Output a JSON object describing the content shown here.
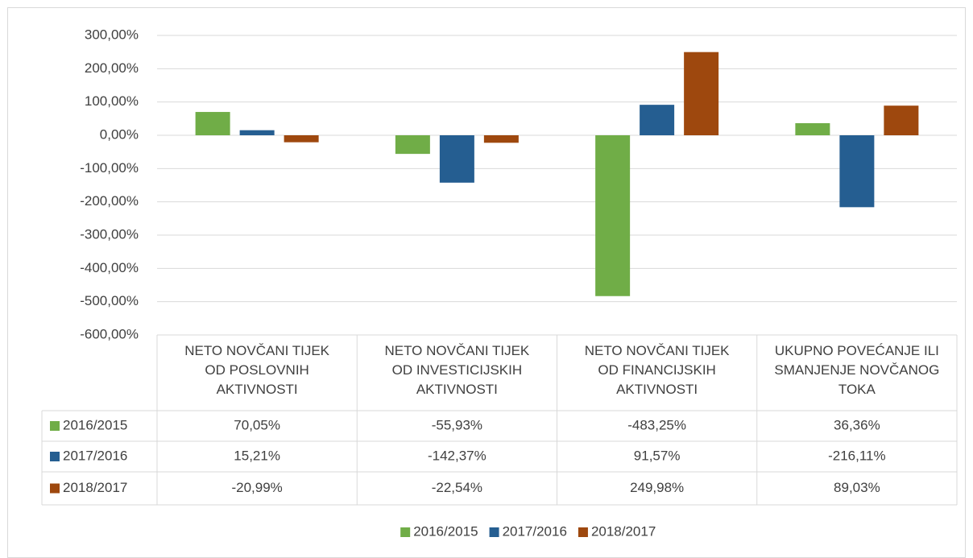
{
  "chart_data": {
    "type": "bar",
    "categories": [
      "NETO NOVČANI TIJEK OD POSLOVNIH AKTIVNOSTI",
      "NETO NOVČANI TIJEK OD INVESTICIJSKIH AKTIVNOSTI",
      "NETO NOVČANI TIJEK OD FINANCIJSKIH AKTIVNOSTI",
      "UKUPNO POVEĆANJE ILI SMANJENJE NOVČANOG TOKA"
    ],
    "series": [
      {
        "name": "2016/2015",
        "color": "#70ad47",
        "values": [
          70.05,
          -55.93,
          -483.25,
          36.36
        ],
        "value_labels": [
          "70,05%",
          "-55,93%",
          "-483,25%",
          "36,36%"
        ]
      },
      {
        "name": "2017/2016",
        "color": "#255e91",
        "values": [
          15.21,
          -142.37,
          91.57,
          -216.11
        ],
        "value_labels": [
          "15,21%",
          "-142,37%",
          "91,57%",
          "-216,11%"
        ]
      },
      {
        "name": "2018/2017",
        "color": "#9e480e",
        "values": [
          -20.99,
          -22.54,
          249.98,
          89.03
        ],
        "value_labels": [
          "-20,99%",
          "-22,54%",
          "249,98%",
          "89,03%"
        ]
      }
    ],
    "ylim": [
      -600,
      300
    ],
    "yticks": [
      {
        "value": 300,
        "label": "300,00%"
      },
      {
        "value": 200,
        "label": "200,00%"
      },
      {
        "value": 100,
        "label": "100,00%"
      },
      {
        "value": 0,
        "label": "0,00%"
      },
      {
        "value": -100,
        "label": "-100,00%"
      },
      {
        "value": -200,
        "label": "-200,00%"
      },
      {
        "value": -300,
        "label": "-300,00%"
      },
      {
        "value": -400,
        "label": "-400,00%"
      },
      {
        "value": -500,
        "label": "-500,00%"
      },
      {
        "value": -600,
        "label": "-600,00%"
      }
    ],
    "grid": true,
    "legend": "bottom"
  }
}
